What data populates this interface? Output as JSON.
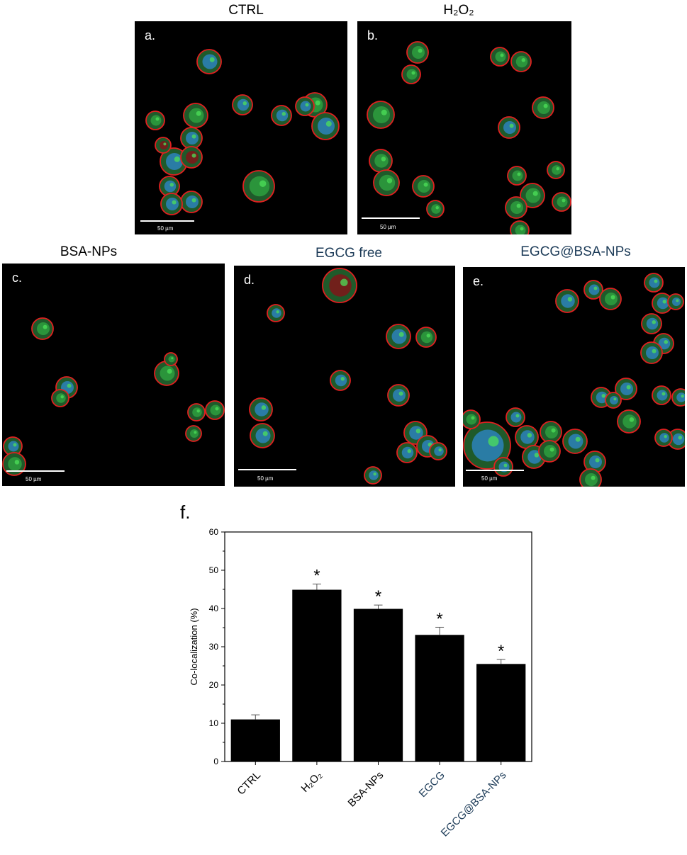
{
  "panels": [
    {
      "letter": "a.",
      "title": "CTRL",
      "title_color": "#000000",
      "scale_label": "50 µm"
    },
    {
      "letter": "b.",
      "title": "H₂O₂",
      "title_color": "#000000",
      "scale_label": "50 µm"
    },
    {
      "letter": "c.",
      "title": "BSA-NPs",
      "title_color": "#000000",
      "scale_label": "50 µm"
    },
    {
      "letter": "d.",
      "title": "EGCG free",
      "title_color": "#1b3a57",
      "scale_label": "50 µm"
    },
    {
      "letter": "e.",
      "title": "EGCG@BSA-NPs",
      "title_color": "#1b3a57",
      "scale_label": "50 µm"
    }
  ],
  "panel_f_letter": "f.",
  "chart_data": {
    "type": "bar",
    "categories": [
      "CTRL",
      "H₂O₂",
      "BSA-NPs",
      "EGCG",
      "EGCG@BSA-NPs"
    ],
    "category_colors": [
      "#000000",
      "#000000",
      "#000000",
      "#1b3a57",
      "#1b3a57"
    ],
    "values": [
      11.0,
      44.9,
      39.9,
      33.1,
      25.5
    ],
    "errors": [
      1.2,
      1.5,
      1.0,
      2.0,
      1.2
    ],
    "significance": [
      "",
      "*",
      "*",
      "*",
      "*"
    ],
    "ylabel": "Co-localization (%)",
    "xlabel": "",
    "ylim": [
      0,
      60
    ],
    "yticks": [
      0,
      10,
      20,
      30,
      40,
      50,
      60
    ],
    "bar_color": "#000000",
    "grid": false
  }
}
